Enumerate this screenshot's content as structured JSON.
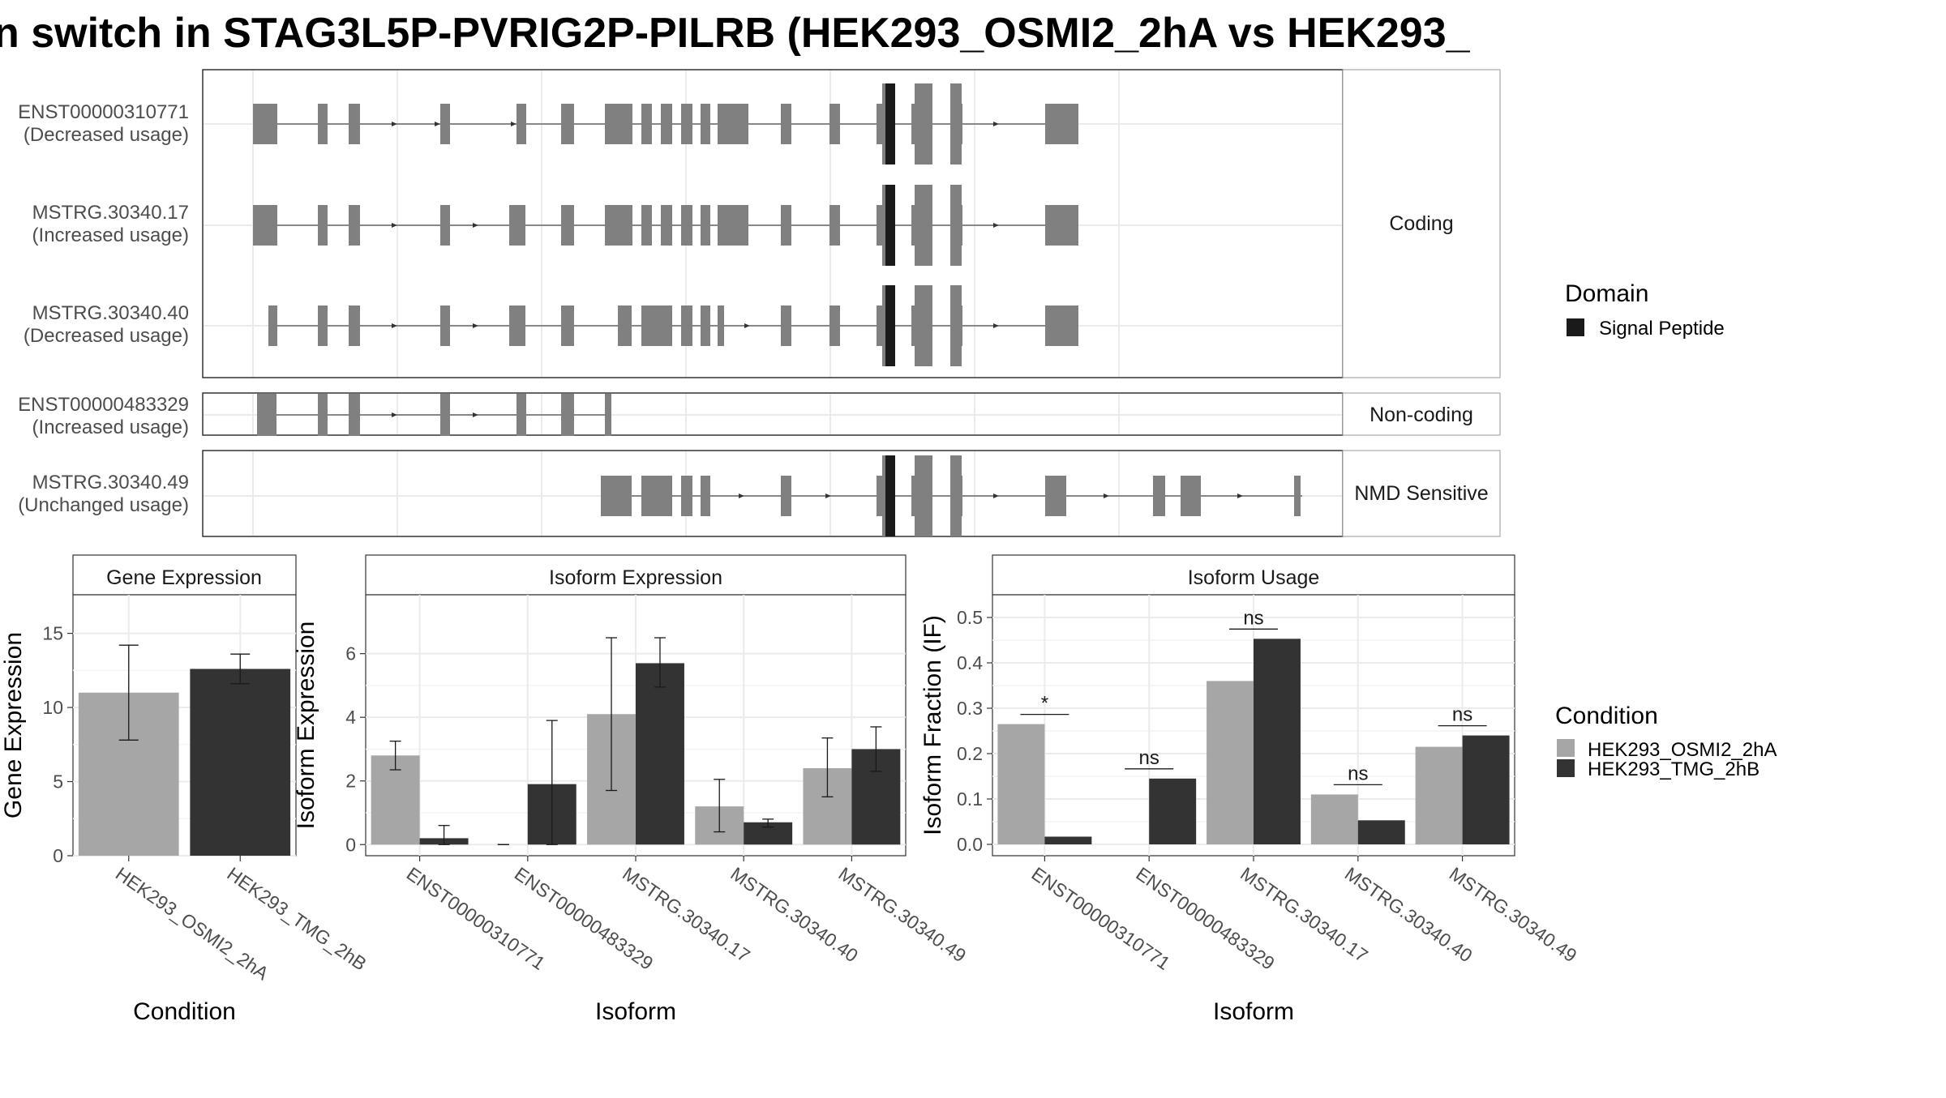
{
  "title": "n switch in STAG3L5P-PVRIG2P-PILRB (HEK293_OSMI2_2hA vs HEK293_",
  "colors": {
    "exon": "#808080",
    "signal_peptide": "#1a1a1a",
    "cond_a": "#a6a6a6",
    "cond_b": "#333333",
    "grid": "#ebebeb",
    "strip_bg": "#ffffff"
  },
  "transcripts": [
    {
      "id": "ENST00000310771",
      "usage": "(Decreased usage)",
      "group": "Coding"
    },
    {
      "id": "MSTRG.30340.17",
      "usage": "(Increased usage)",
      "group": "Coding"
    },
    {
      "id": "MSTRG.30340.40",
      "usage": "(Decreased usage)",
      "group": "Coding"
    },
    {
      "id": "ENST00000483329",
      "usage": "(Increased usage)",
      "group": "Non-coding"
    },
    {
      "id": "MSTRG.30340.49",
      "usage": "(Unchanged usage)",
      "group": "NMD Sensitive"
    }
  ],
  "facets": [
    "Coding",
    "Non-coding",
    "NMD Sensitive"
  ],
  "domain_legend": {
    "title": "Domain",
    "items": [
      "Signal Peptide"
    ]
  },
  "condition_legend": {
    "title": "Condition",
    "items": [
      "HEK293_OSMI2_2hA",
      "HEK293_TMG_2hB"
    ]
  },
  "chart_data": [
    {
      "type": "bar",
      "title": "Gene Expression",
      "xlabel": "Condition",
      "ylabel": "Gene Expression",
      "categories": [
        "HEK293_OSMI2_2hA",
        "HEK293_TMG_2hB"
      ],
      "values": [
        11.0,
        12.6
      ],
      "error_low": [
        7.8,
        11.6
      ],
      "error_high": [
        14.2,
        13.6
      ],
      "ylim": [
        0,
        17.6
      ],
      "yticks": [
        0,
        5,
        10,
        15
      ]
    },
    {
      "type": "bar",
      "title": "Isoform Expression",
      "xlabel": "Isoform",
      "ylabel": "Isoform Expression",
      "categories": [
        "ENST00000310771",
        "ENST00000483329",
        "MSTRG.30340.17",
        "MSTRG.30340.40",
        "MSTRG.30340.49"
      ],
      "series": [
        {
          "condition": "HEK293_OSMI2_2hA",
          "values": [
            2.8,
            0.0,
            4.1,
            1.2,
            2.4
          ],
          "error_low": [
            2.35,
            0.0,
            1.7,
            0.4,
            1.5
          ],
          "error_high": [
            3.25,
            0.0,
            6.5,
            2.05,
            3.35
          ]
        },
        {
          "condition": "HEK293_TMG_2hB",
          "values": [
            0.2,
            1.9,
            5.7,
            0.7,
            3.0
          ],
          "error_low": [
            0.0,
            0.0,
            4.95,
            0.55,
            2.3
          ],
          "error_high": [
            0.6,
            3.9,
            6.5,
            0.8,
            3.7
          ]
        }
      ],
      "ylim": [
        -0.35,
        7.85
      ],
      "yticks": [
        0,
        2,
        4,
        6
      ]
    },
    {
      "type": "bar",
      "title": "Isoform Usage",
      "xlabel": "Isoform",
      "ylabel": "Isoform Fraction (IF)",
      "categories": [
        "ENST00000310771",
        "ENST00000483329",
        "MSTRG.30340.17",
        "MSTRG.30340.40",
        "MSTRG.30340.49"
      ],
      "series": [
        {
          "condition": "HEK293_OSMI2_2hA",
          "values": [
            0.265,
            0.0,
            0.36,
            0.11,
            0.215
          ]
        },
        {
          "condition": "HEK293_TMG_2hB",
          "values": [
            0.017,
            0.145,
            0.453,
            0.053,
            0.24
          ]
        }
      ],
      "significance": [
        "*",
        "ns",
        "ns",
        "ns",
        "ns"
      ],
      "ylim": [
        -0.025,
        0.55
      ],
      "yticks": [
        0.0,
        0.1,
        0.2,
        0.3,
        0.4,
        0.5
      ]
    }
  ]
}
